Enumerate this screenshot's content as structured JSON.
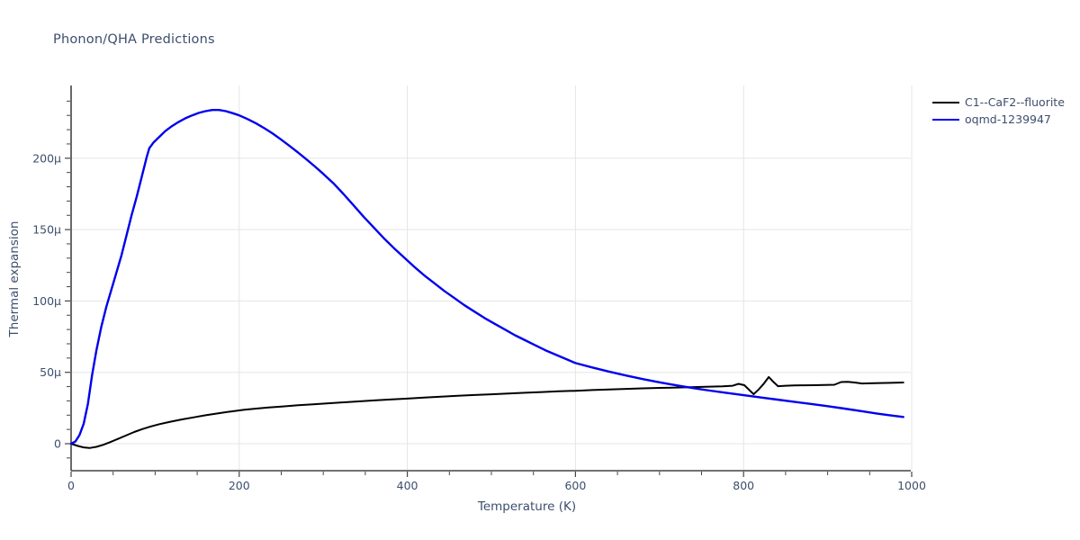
{
  "title": "Phonon/QHA Predictions",
  "axes": {
    "x_label": "Temperature (K)",
    "y_label": "Thermal expansion"
  },
  "legend": {
    "position": "top-right",
    "items": [
      {
        "label": "C1--CaF2--fluorite",
        "color": "#000000"
      },
      {
        "label": "oqmd-1239947",
        "color": "#0000ee"
      }
    ]
  },
  "colors": {
    "background": "#ffffff",
    "text": "#3d4e6d",
    "axis_line": "#444444",
    "grid": "#e5e5e5"
  },
  "chart_data": {
    "type": "line",
    "title": "Phonon/QHA Predictions",
    "xlabel": "Temperature (K)",
    "ylabel": "Thermal expansion",
    "value_unit": "microstrain (1e-6), shown with µ suffix",
    "xlim": [
      0,
      1000
    ],
    "ylim_micro": [
      -19,
      251
    ],
    "x_major_ticks": [
      0,
      200,
      400,
      600,
      800,
      1000
    ],
    "x_minor_tick_step": 50,
    "y_major_ticks_micro": [
      0,
      50,
      100,
      150,
      200
    ],
    "y_major_tick_labels": [
      "0",
      "50µ",
      "100µ",
      "150µ",
      "200µ"
    ],
    "y_minor_tick_step_micro": 10,
    "grid": {
      "horizontal_at_y_majors": true,
      "vertical_at_x_majors": true
    },
    "series": [
      {
        "name": "C1--CaF2--fluorite",
        "color": "#000000",
        "width": 2,
        "points": [
          [
            0,
            0
          ],
          [
            8,
            -1.6
          ],
          [
            15,
            -2.6
          ],
          [
            22,
            -3
          ],
          [
            30,
            -2.2
          ],
          [
            38,
            -0.8
          ],
          [
            46,
            1
          ],
          [
            55,
            3.2
          ],
          [
            65,
            5.7
          ],
          [
            75,
            8.2
          ],
          [
            85,
            10.3
          ],
          [
            95,
            12.1
          ],
          [
            105,
            13.7
          ],
          [
            118,
            15.4
          ],
          [
            132,
            17
          ],
          [
            146,
            18.5
          ],
          [
            160,
            19.9
          ],
          [
            175,
            21.3
          ],
          [
            190,
            22.6
          ],
          [
            205,
            23.7
          ],
          [
            220,
            24.6
          ],
          [
            235,
            25.4
          ],
          [
            252,
            26.1
          ],
          [
            270,
            26.9
          ],
          [
            288,
            27.6
          ],
          [
            306,
            28.3
          ],
          [
            325,
            29
          ],
          [
            344,
            29.7
          ],
          [
            363,
            30.4
          ],
          [
            382,
            31
          ],
          [
            400,
            31.6
          ],
          [
            420,
            32.3
          ],
          [
            440,
            33
          ],
          [
            460,
            33.6
          ],
          [
            480,
            34.1
          ],
          [
            500,
            34.6
          ],
          [
            520,
            35.2
          ],
          [
            540,
            35.7
          ],
          [
            560,
            36.2
          ],
          [
            580,
            36.7
          ],
          [
            600,
            37.1
          ],
          [
            620,
            37.6
          ],
          [
            640,
            38
          ],
          [
            660,
            38.4
          ],
          [
            680,
            38.8
          ],
          [
            700,
            39.1
          ],
          [
            715,
            39.3
          ],
          [
            730,
            39.5
          ],
          [
            745,
            39.7
          ],
          [
            760,
            40
          ],
          [
            775,
            40.2
          ],
          [
            787,
            40.6
          ],
          [
            794,
            41.9
          ],
          [
            801,
            41
          ],
          [
            807,
            37.5
          ],
          [
            812,
            34.7
          ],
          [
            818,
            38
          ],
          [
            824,
            42
          ],
          [
            830,
            46.7
          ],
          [
            836,
            43
          ],
          [
            841,
            40.3
          ],
          [
            850,
            40.6
          ],
          [
            860,
            40.8
          ],
          [
            872,
            40.9
          ],
          [
            884,
            41
          ],
          [
            896,
            41.1
          ],
          [
            908,
            41.3
          ],
          [
            916,
            43.2
          ],
          [
            924,
            43.3
          ],
          [
            932,
            42.9
          ],
          [
            941,
            42.2
          ],
          [
            950,
            42.3
          ],
          [
            962,
            42.5
          ],
          [
            975,
            42.6
          ],
          [
            990,
            42.9
          ]
        ]
      },
      {
        "name": "oqmd-1239947",
        "color": "#0000ee",
        "width": 2.4,
        "points": [
          [
            0,
            0
          ],
          [
            5,
            1.5
          ],
          [
            10,
            6
          ],
          [
            15,
            14
          ],
          [
            20,
            28
          ],
          [
            25,
            48
          ],
          [
            30,
            65
          ],
          [
            36,
            82
          ],
          [
            42,
            96
          ],
          [
            48,
            108
          ],
          [
            54,
            120
          ],
          [
            60,
            132
          ],
          [
            66,
            146
          ],
          [
            72,
            160
          ],
          [
            78,
            173
          ],
          [
            84,
            187
          ],
          [
            90,
            201
          ],
          [
            93,
            207
          ],
          [
            98,
            211
          ],
          [
            105,
            215
          ],
          [
            112,
            219
          ],
          [
            120,
            222.5
          ],
          [
            128,
            225.5
          ],
          [
            136,
            228
          ],
          [
            144,
            230
          ],
          [
            152,
            231.8
          ],
          [
            160,
            233
          ],
          [
            168,
            233.8
          ],
          [
            176,
            233.8
          ],
          [
            184,
            233
          ],
          [
            192,
            231.6
          ],
          [
            200,
            230
          ],
          [
            210,
            227.4
          ],
          [
            220,
            224.4
          ],
          [
            230,
            221
          ],
          [
            240,
            217.2
          ],
          [
            250,
            213
          ],
          [
            260,
            208.6
          ],
          [
            270,
            204
          ],
          [
            280,
            199.2
          ],
          [
            290,
            194.2
          ],
          [
            300,
            189
          ],
          [
            312,
            182.5
          ],
          [
            324,
            175
          ],
          [
            336,
            167
          ],
          [
            348,
            159
          ],
          [
            360,
            151.5
          ],
          [
            372,
            144
          ],
          [
            384,
            137
          ],
          [
            396,
            130.5
          ],
          [
            408,
            124
          ],
          [
            420,
            118
          ],
          [
            432,
            112.5
          ],
          [
            444,
            107
          ],
          [
            456,
            102
          ],
          [
            468,
            97
          ],
          [
            480,
            92.5
          ],
          [
            492,
            88
          ],
          [
            504,
            84
          ],
          [
            516,
            80
          ],
          [
            528,
            76
          ],
          [
            540,
            72.5
          ],
          [
            552,
            69
          ],
          [
            564,
            65.5
          ],
          [
            576,
            62.5
          ],
          [
            588,
            59.5
          ],
          [
            600,
            56.5
          ],
          [
            620,
            53.4
          ],
          [
            640,
            50.5
          ],
          [
            660,
            47.8
          ],
          [
            680,
            45.3
          ],
          [
            700,
            43
          ],
          [
            715,
            41.4
          ],
          [
            730,
            39.9
          ],
          [
            745,
            38.5
          ],
          [
            760,
            37.2
          ],
          [
            775,
            36
          ],
          [
            790,
            34.8
          ],
          [
            805,
            33.6
          ],
          [
            820,
            32.4
          ],
          [
            840,
            30.9
          ],
          [
            860,
            29.4
          ],
          [
            880,
            27.9
          ],
          [
            900,
            26.3
          ],
          [
            920,
            24.6
          ],
          [
            940,
            22.8
          ],
          [
            960,
            21
          ],
          [
            975,
            19.8
          ],
          [
            990,
            18.7
          ]
        ]
      }
    ]
  },
  "plot_geometry_note": "x axis 0-1000 K, y axis -19µ to 251µ, gridlines at labeled majors only"
}
